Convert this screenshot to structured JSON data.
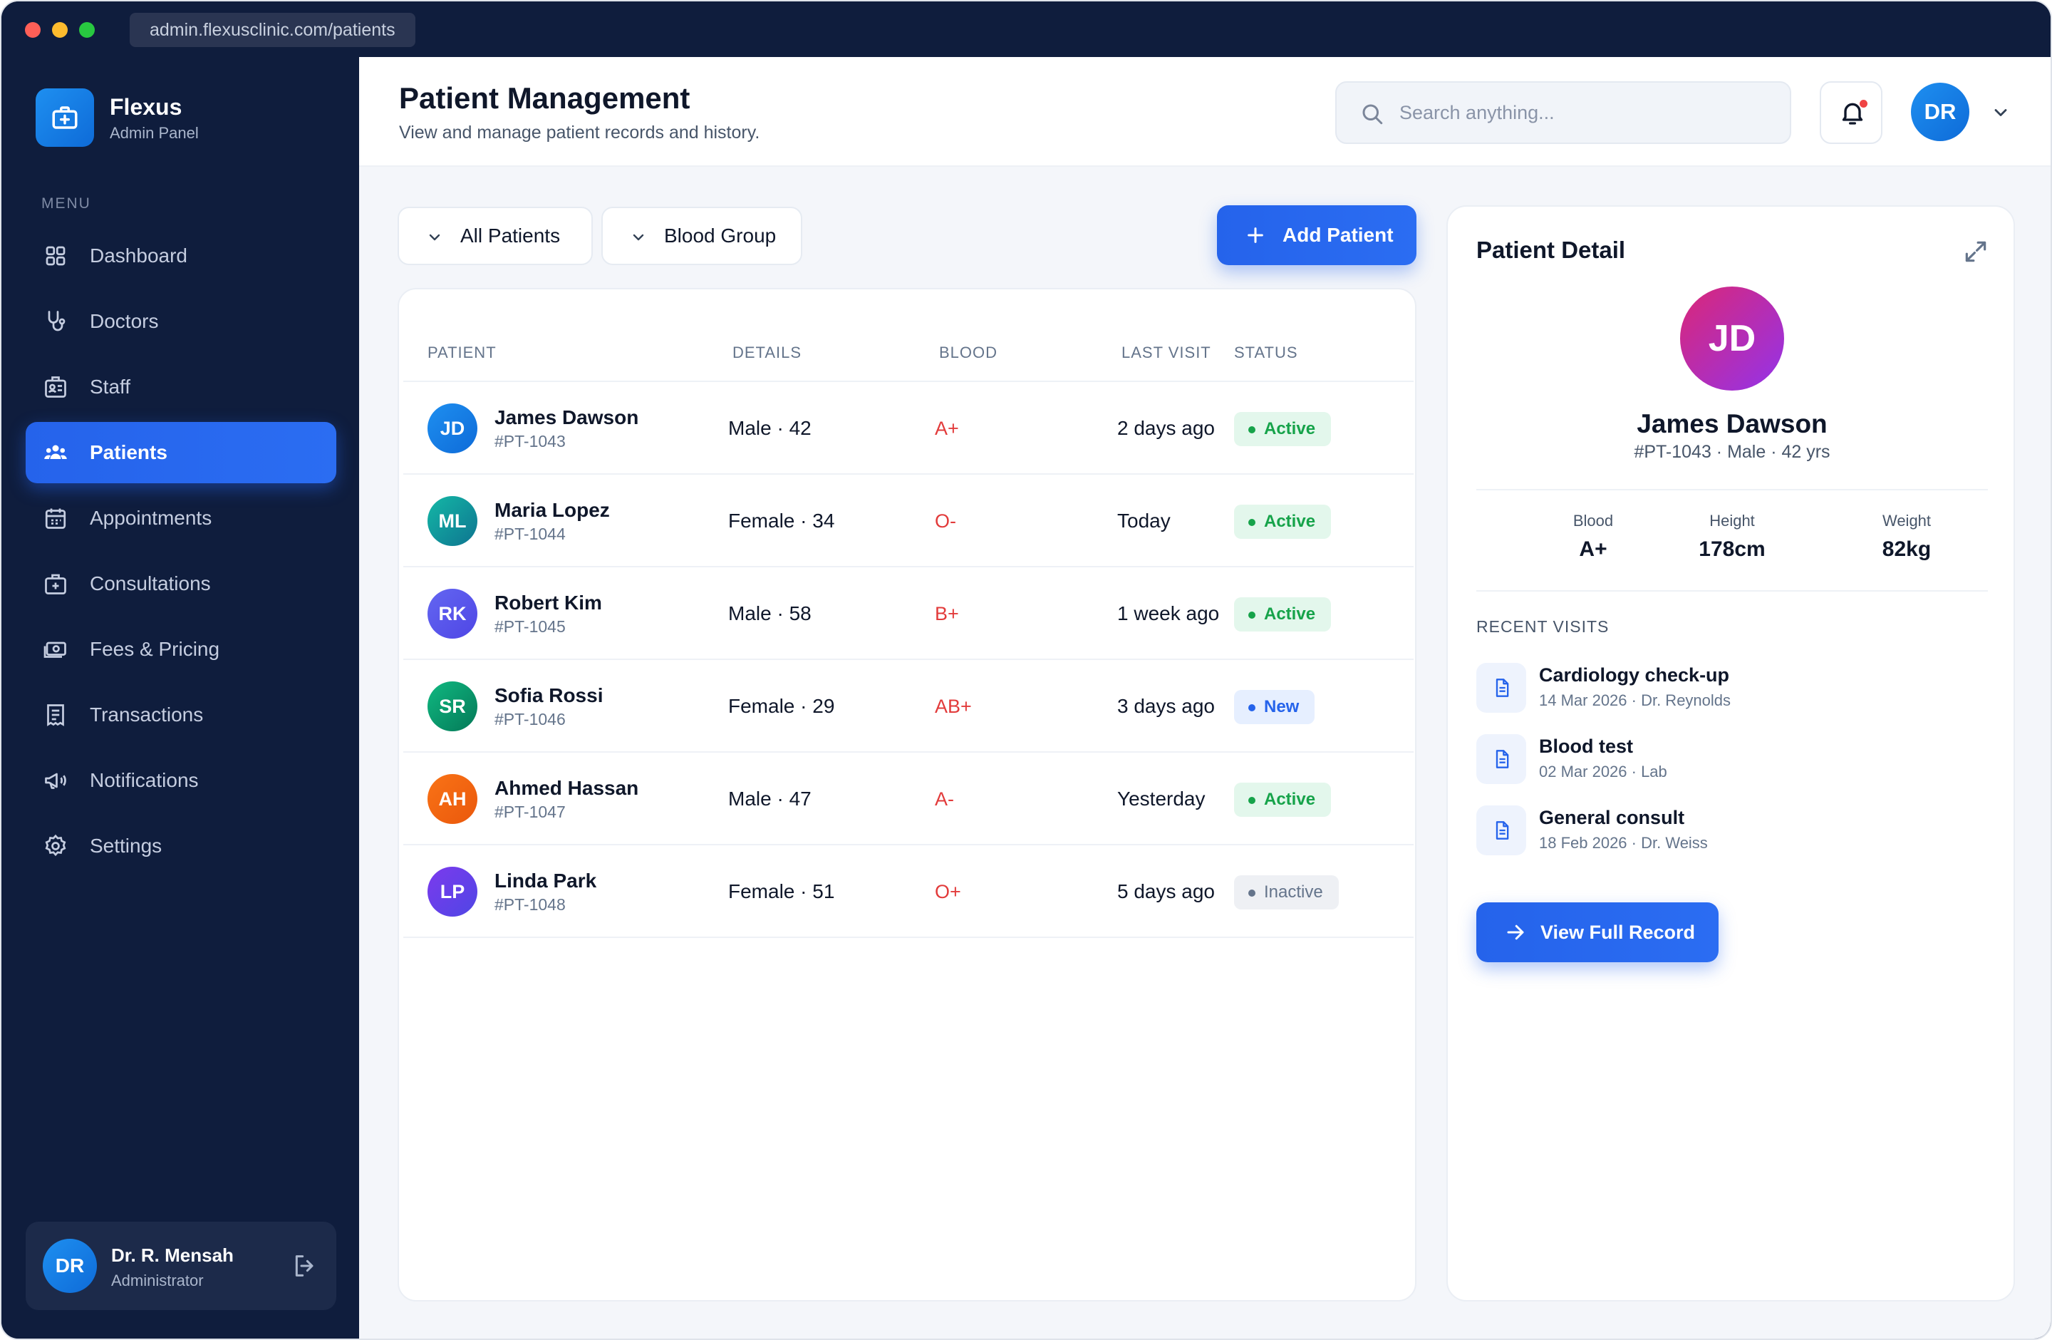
{
  "browser": {
    "url": "admin.flexusclinic.com/patients"
  },
  "brand": {
    "name": "Flexus",
    "subtitle": "Admin Panel"
  },
  "sidebar": {
    "menu_label": "MENU",
    "items": [
      {
        "label": "Dashboard",
        "icon": "grid-icon"
      },
      {
        "label": "Doctors",
        "icon": "stethoscope-icon"
      },
      {
        "label": "Staff",
        "icon": "badge-icon"
      },
      {
        "label": "Patients",
        "icon": "users-icon",
        "active": true
      },
      {
        "label": "Appointments",
        "icon": "calendar-icon"
      },
      {
        "label": "Consultations",
        "icon": "medical-case-icon"
      },
      {
        "label": "Fees & Pricing",
        "icon": "money-icon"
      },
      {
        "label": "Transactions",
        "icon": "receipt-icon"
      },
      {
        "label": "Notifications",
        "icon": "megaphone-icon"
      },
      {
        "label": "Settings",
        "icon": "gear-icon"
      }
    ],
    "user": {
      "initials": "DR",
      "name": "Dr. R. Mensah",
      "role": "Administrator"
    }
  },
  "header": {
    "title": "Patient Management",
    "subtitle": "View and manage patient records and history.",
    "search_placeholder": "Search anything...",
    "avatar_initials": "DR"
  },
  "toolbar": {
    "filter_all": "All Patients",
    "filter_blood": "Blood Group",
    "add_label": "Add Patient"
  },
  "table": {
    "columns": [
      "PATIENT",
      "DETAILS",
      "BLOOD",
      "LAST VISIT",
      "STATUS"
    ],
    "rows": [
      {
        "initials": "JD",
        "name": "James Dawson",
        "id": "#PT-1043",
        "details": "Male · 42",
        "blood": "A+",
        "last_visit": "2 days ago",
        "status": "Active"
      },
      {
        "initials": "ML",
        "name": "Maria Lopez",
        "id": "#PT-1044",
        "details": "Female · 34",
        "blood": "O-",
        "last_visit": "Today",
        "status": "Active"
      },
      {
        "initials": "RK",
        "name": "Robert Kim",
        "id": "#PT-1045",
        "details": "Male · 58",
        "blood": "B+",
        "last_visit": "1 week ago",
        "status": "Active"
      },
      {
        "initials": "SR",
        "name": "Sofia Rossi",
        "id": "#PT-1046",
        "details": "Female · 29",
        "blood": "AB+",
        "last_visit": "3 days ago",
        "status": "New"
      },
      {
        "initials": "AH",
        "name": "Ahmed Hassan",
        "id": "#PT-1047",
        "details": "Male · 47",
        "blood": "A-",
        "last_visit": "Yesterday",
        "status": "Active"
      },
      {
        "initials": "LP",
        "name": "Linda Park",
        "id": "#PT-1048",
        "details": "Female · 51",
        "blood": "O+",
        "last_visit": "5 days ago",
        "status": "Inactive"
      }
    ]
  },
  "detail": {
    "title": "Patient Detail",
    "initials": "JD",
    "name": "James Dawson",
    "meta": "#PT-1043 · Male · 42 yrs",
    "stats": [
      {
        "label": "Blood",
        "value": "A+"
      },
      {
        "label": "Height",
        "value": "178cm"
      },
      {
        "label": "Weight",
        "value": "82kg"
      }
    ],
    "recent_label": "RECENT VISITS",
    "visits": [
      {
        "title": "Cardiology check-up",
        "sub": "14 Mar 2026 · Dr. Reynolds"
      },
      {
        "title": "Blood test",
        "sub": "02 Mar 2026 · Lab"
      },
      {
        "title": "General consult",
        "sub": "18 Feb 2026 · Dr. Weiss"
      }
    ],
    "view_label": "View Full Record"
  },
  "colors": {
    "accent": "#2563eb",
    "sidebar_bg": "#0f1d3d",
    "active_status": "#16a34a",
    "new_status": "#2563eb",
    "blood_text": "#e23b3b"
  }
}
